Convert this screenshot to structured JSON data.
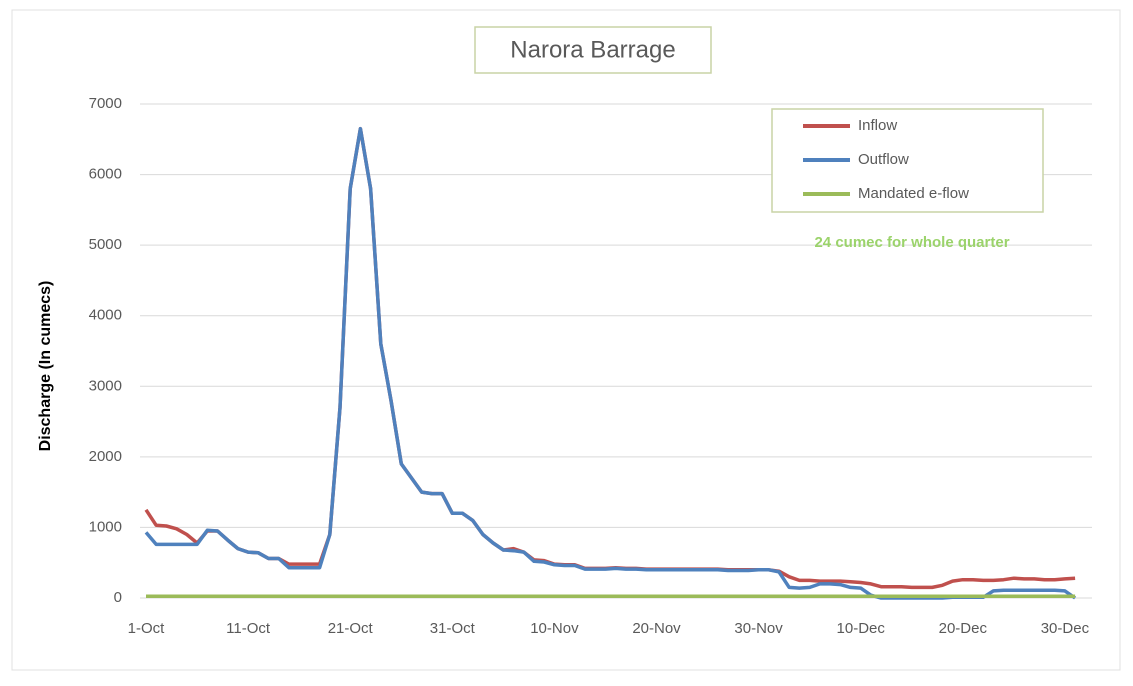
{
  "chart_data": {
    "type": "line",
    "title": "Narora Barrage",
    "ylabel": "Discharge (In cumecs)",
    "annotation": "24 cumec for whole quarter",
    "categories": [
      "1-Oct",
      null,
      null,
      null,
      null,
      null,
      null,
      null,
      null,
      null,
      "11-Oct",
      null,
      null,
      null,
      null,
      null,
      null,
      null,
      null,
      null,
      "21-Oct",
      null,
      null,
      null,
      null,
      null,
      null,
      null,
      null,
      null,
      "31-Oct",
      null,
      null,
      null,
      null,
      null,
      null,
      null,
      null,
      null,
      "10-Nov",
      null,
      null,
      null,
      null,
      null,
      null,
      null,
      null,
      null,
      "20-Nov",
      null,
      null,
      null,
      null,
      null,
      null,
      null,
      null,
      null,
      "30-Nov",
      null,
      null,
      null,
      null,
      null,
      null,
      null,
      null,
      null,
      "10-Dec",
      null,
      null,
      null,
      null,
      null,
      null,
      null,
      null,
      null,
      "20-Dec",
      null,
      null,
      null,
      null,
      null,
      null,
      null,
      null,
      null,
      "30-Dec",
      null
    ],
    "series": [
      {
        "name": "Inflow",
        "color": "#c0504d",
        "values": [
          1250,
          1030,
          1020,
          980,
          900,
          780,
          950,
          950,
          820,
          700,
          650,
          640,
          560,
          560,
          480,
          480,
          480,
          480,
          900,
          2700,
          5800,
          6650,
          5800,
          3600,
          2800,
          1900,
          1700,
          1500,
          1480,
          1480,
          1200,
          1200,
          1100,
          900,
          780,
          680,
          700,
          650,
          540,
          530,
          480,
          470,
          470,
          420,
          420,
          420,
          430,
          420,
          420,
          410,
          410,
          410,
          410,
          410,
          410,
          410,
          410,
          400,
          400,
          400,
          400,
          400,
          380,
          300,
          250,
          250,
          240,
          240,
          240,
          230,
          220,
          200,
          160,
          160,
          160,
          150,
          150,
          150,
          180,
          240,
          260,
          260,
          250,
          250,
          260,
          280,
          270,
          270,
          260,
          260,
          270,
          280
        ]
      },
      {
        "name": "Outflow",
        "color": "#4f81bd",
        "values": [
          930,
          760,
          760,
          760,
          760,
          760,
          960,
          950,
          820,
          700,
          650,
          640,
          560,
          560,
          430,
          430,
          430,
          430,
          900,
          2700,
          5800,
          6650,
          5800,
          3600,
          2800,
          1900,
          1700,
          1500,
          1480,
          1480,
          1200,
          1200,
          1100,
          900,
          780,
          680,
          670,
          650,
          520,
          510,
          470,
          460,
          460,
          410,
          410,
          410,
          420,
          410,
          410,
          400,
          400,
          400,
          400,
          400,
          400,
          400,
          400,
          390,
          390,
          390,
          400,
          400,
          370,
          150,
          140,
          150,
          200,
          200,
          190,
          150,
          140,
          40,
          0,
          0,
          0,
          0,
          0,
          0,
          0,
          10,
          10,
          10,
          10,
          100,
          110,
          110,
          110,
          110,
          110,
          110,
          100,
          0
        ]
      },
      {
        "name": "Mandated e-flow",
        "color": "#9bbb59",
        "values": [
          24,
          24,
          24,
          24,
          24,
          24,
          24,
          24,
          24,
          24,
          24,
          24,
          24,
          24,
          24,
          24,
          24,
          24,
          24,
          24,
          24,
          24,
          24,
          24,
          24,
          24,
          24,
          24,
          24,
          24,
          24,
          24,
          24,
          24,
          24,
          24,
          24,
          24,
          24,
          24,
          24,
          24,
          24,
          24,
          24,
          24,
          24,
          24,
          24,
          24,
          24,
          24,
          24,
          24,
          24,
          24,
          24,
          24,
          24,
          24,
          24,
          24,
          24,
          24,
          24,
          24,
          24,
          24,
          24,
          24,
          24,
          24,
          24,
          24,
          24,
          24,
          24,
          24,
          24,
          24,
          24,
          24,
          24,
          24,
          24,
          24,
          24,
          24,
          24,
          24,
          24,
          24
        ]
      }
    ],
    "ylim": [
      0,
      7000
    ],
    "yticks": [
      0,
      1000,
      2000,
      3000,
      4000,
      5000,
      6000,
      7000
    ],
    "grid": true
  }
}
